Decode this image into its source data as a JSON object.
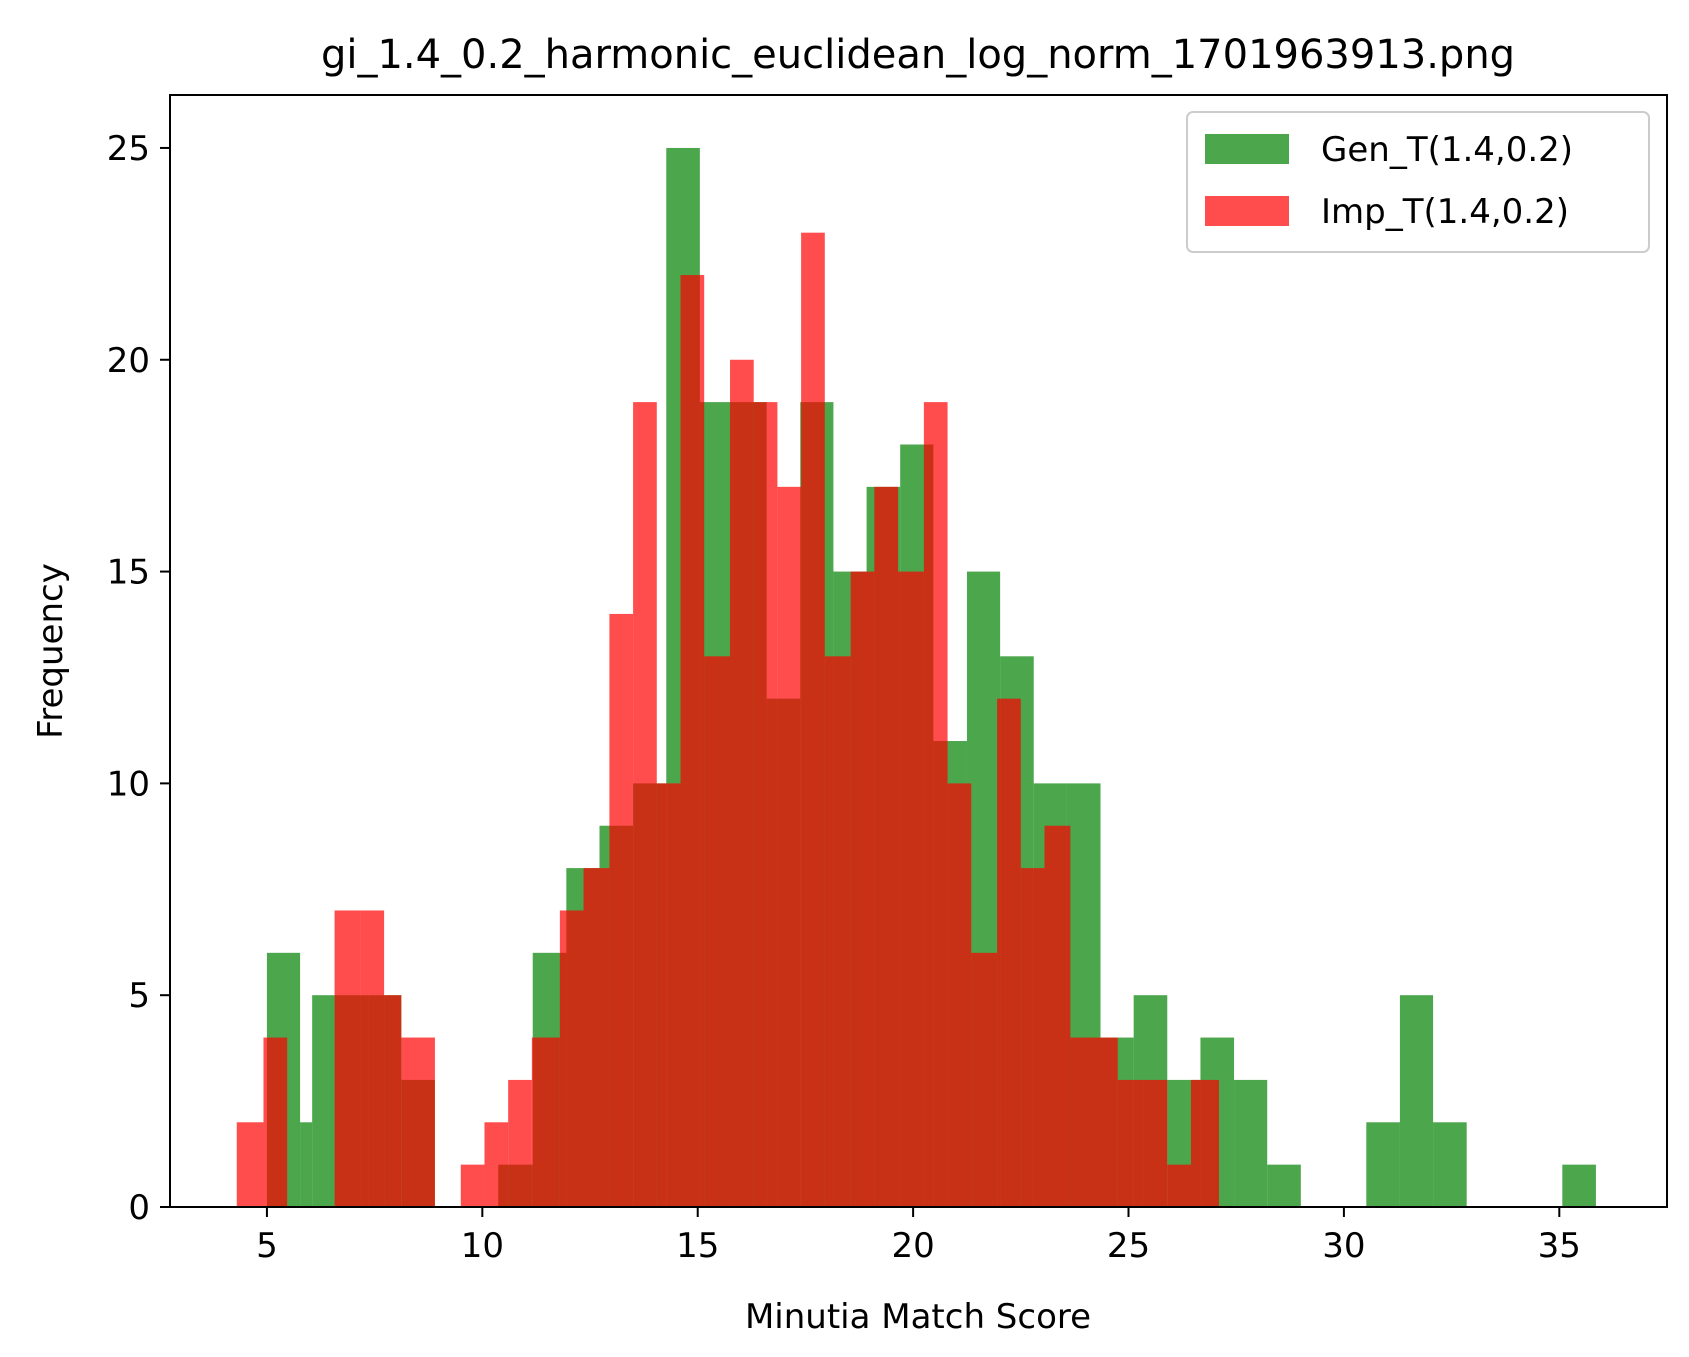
{
  "chart_data": {
    "type": "histogram",
    "title": "gi_1.4_0.2_harmonic_euclidean_log_norm_1701963913.png",
    "xlabel": "Minutia Match Score",
    "ylabel": "Frequency",
    "xlim": [
      2.75,
      37.5
    ],
    "ylim": [
      0,
      26.25
    ],
    "xticks": [
      5,
      10,
      15,
      20,
      25,
      30,
      35
    ],
    "yticks": [
      0,
      5,
      10,
      15,
      20,
      25
    ],
    "grid": false,
    "legend_position": "top-right",
    "series": [
      {
        "name": "Gen_T(1.4,0.2)",
        "color": "#008000",
        "opacity": 0.7,
        "bins": [
          {
            "x0": 5.0,
            "x1": 5.77,
            "count": 6
          },
          {
            "x0": 5.77,
            "x1": 6.05,
            "count": 2
          },
          {
            "x0": 6.05,
            "x1": 6.57,
            "count": 5
          },
          {
            "x0": 6.57,
            "x1": 7.35,
            "count": 5
          },
          {
            "x0": 7.35,
            "x1": 8.12,
            "count": 5
          },
          {
            "x0": 8.12,
            "x1": 8.9,
            "count": 3
          },
          {
            "x0": 10.37,
            "x1": 11.17,
            "count": 1
          },
          {
            "x0": 11.17,
            "x1": 11.95,
            "count": 6
          },
          {
            "x0": 11.95,
            "x1": 12.72,
            "count": 8
          },
          {
            "x0": 12.72,
            "x1": 13.5,
            "count": 9
          },
          {
            "x0": 13.5,
            "x1": 14.27,
            "count": 10
          },
          {
            "x0": 14.27,
            "x1": 15.05,
            "count": 25
          },
          {
            "x0": 15.05,
            "x1": 15.82,
            "count": 19
          },
          {
            "x0": 15.82,
            "x1": 16.6,
            "count": 19
          },
          {
            "x0": 16.6,
            "x1": 17.38,
            "count": 12
          },
          {
            "x0": 17.38,
            "x1": 18.15,
            "count": 19
          },
          {
            "x0": 18.15,
            "x1": 18.92,
            "count": 15
          },
          {
            "x0": 18.92,
            "x1": 19.7,
            "count": 17
          },
          {
            "x0": 19.7,
            "x1": 20.47,
            "count": 18
          },
          {
            "x0": 20.47,
            "x1": 21.25,
            "count": 11
          },
          {
            "x0": 21.25,
            "x1": 22.02,
            "count": 15
          },
          {
            "x0": 22.02,
            "x1": 22.8,
            "count": 13
          },
          {
            "x0": 22.8,
            "x1": 23.57,
            "count": 10
          },
          {
            "x0": 23.57,
            "x1": 24.35,
            "count": 10
          },
          {
            "x0": 24.35,
            "x1": 25.12,
            "count": 4
          },
          {
            "x0": 25.12,
            "x1": 25.9,
            "count": 5
          },
          {
            "x0": 25.9,
            "x1": 26.67,
            "count": 3
          },
          {
            "x0": 26.67,
            "x1": 27.45,
            "count": 4
          },
          {
            "x0": 27.45,
            "x1": 28.22,
            "count": 3
          },
          {
            "x0": 28.22,
            "x1": 29.0,
            "count": 1
          },
          {
            "x0": 30.52,
            "x1": 31.3,
            "count": 2
          },
          {
            "x0": 31.3,
            "x1": 32.07,
            "count": 5
          },
          {
            "x0": 32.07,
            "x1": 32.85,
            "count": 2
          },
          {
            "x0": 35.07,
            "x1": 35.85,
            "count": 1
          }
        ]
      },
      {
        "name": "Imp_T(1.4,0.2)",
        "color": "#ff0000",
        "opacity": 0.7,
        "bins": [
          {
            "x0": 4.3,
            "x1": 4.92,
            "count": 2
          },
          {
            "x0": 4.92,
            "x1": 5.47,
            "count": 4
          },
          {
            "x0": 5.47,
            "x1": 6.02,
            "count": 0
          },
          {
            "x0": 6.02,
            "x1": 6.57,
            "count": 0
          },
          {
            "x0": 6.57,
            "x1": 7.17,
            "count": 7
          },
          {
            "x0": 7.17,
            "x1": 7.72,
            "count": 7
          },
          {
            "x0": 7.72,
            "x1": 8.12,
            "count": 5
          },
          {
            "x0": 8.12,
            "x1": 8.9,
            "count": 4
          },
          {
            "x0": 9.5,
            "x1": 10.05,
            "count": 1
          },
          {
            "x0": 10.05,
            "x1": 10.6,
            "count": 2
          },
          {
            "x0": 10.6,
            "x1": 11.15,
            "count": 3
          },
          {
            "x0": 11.15,
            "x1": 11.8,
            "count": 4
          },
          {
            "x0": 11.8,
            "x1": 12.35,
            "count": 7
          },
          {
            "x0": 12.35,
            "x1": 12.95,
            "count": 8
          },
          {
            "x0": 12.95,
            "x1": 13.5,
            "count": 14
          },
          {
            "x0": 13.5,
            "x1": 14.05,
            "count": 19
          },
          {
            "x0": 14.05,
            "x1": 14.6,
            "count": 10
          },
          {
            "x0": 14.6,
            "x1": 15.15,
            "count": 22
          },
          {
            "x0": 15.15,
            "x1": 15.75,
            "count": 13
          },
          {
            "x0": 15.75,
            "x1": 16.3,
            "count": 20
          },
          {
            "x0": 16.3,
            "x1": 16.85,
            "count": 19
          },
          {
            "x0": 16.85,
            "x1": 17.4,
            "count": 17
          },
          {
            "x0": 17.4,
            "x1": 17.95,
            "count": 23
          },
          {
            "x0": 17.95,
            "x1": 18.55,
            "count": 13
          },
          {
            "x0": 18.55,
            "x1": 19.1,
            "count": 15
          },
          {
            "x0": 19.1,
            "x1": 19.65,
            "count": 17
          },
          {
            "x0": 19.65,
            "x1": 20.25,
            "count": 15
          },
          {
            "x0": 20.25,
            "x1": 20.8,
            "count": 19
          },
          {
            "x0": 20.8,
            "x1": 21.35,
            "count": 10
          },
          {
            "x0": 21.35,
            "x1": 21.95,
            "count": 6
          },
          {
            "x0": 21.95,
            "x1": 22.5,
            "count": 12
          },
          {
            "x0": 22.5,
            "x1": 23.05,
            "count": 8
          },
          {
            "x0": 23.05,
            "x1": 23.65,
            "count": 9
          },
          {
            "x0": 23.65,
            "x1": 24.2,
            "count": 4
          },
          {
            "x0": 24.2,
            "x1": 24.75,
            "count": 4
          },
          {
            "x0": 24.75,
            "x1": 25.35,
            "count": 3
          },
          {
            "x0": 25.35,
            "x1": 25.9,
            "count": 3
          },
          {
            "x0": 25.9,
            "x1": 26.45,
            "count": 1
          },
          {
            "x0": 26.45,
            "x1": 27.1,
            "count": 3
          }
        ]
      }
    ]
  }
}
